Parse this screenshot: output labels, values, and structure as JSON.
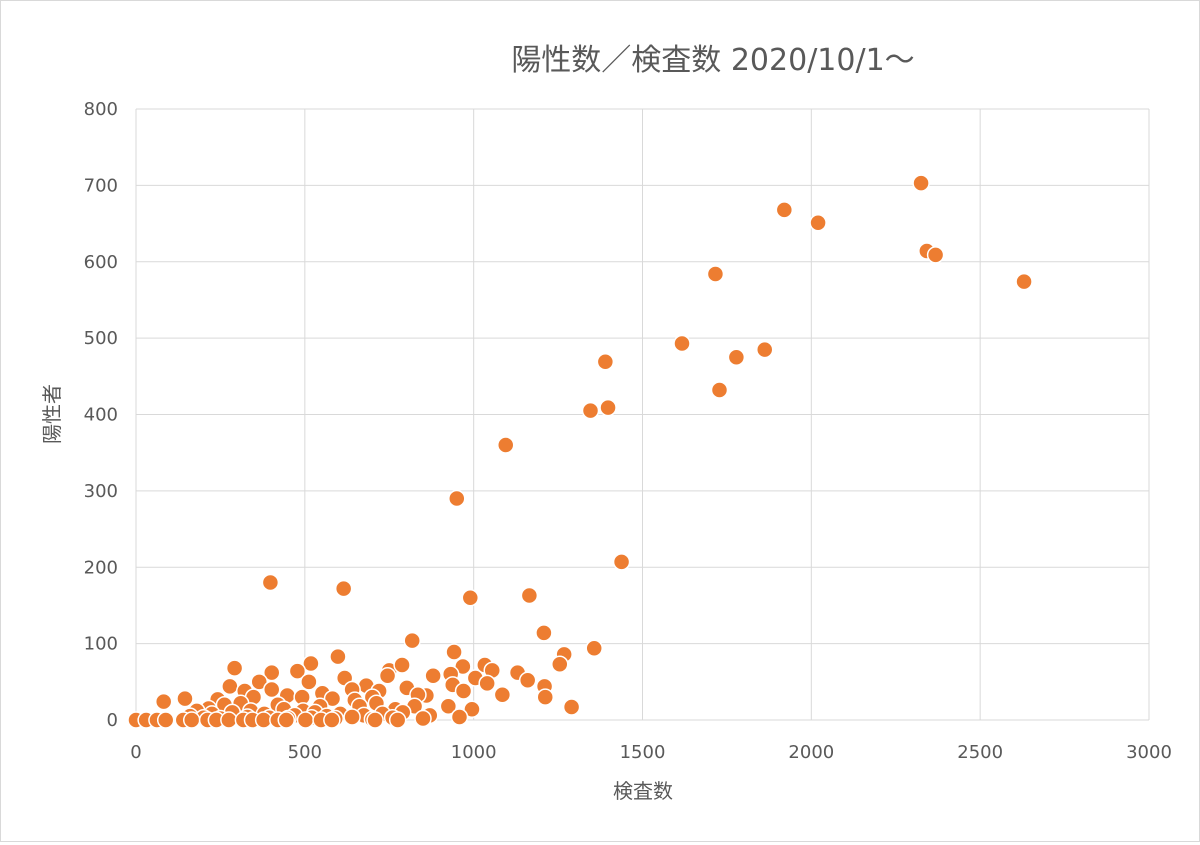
{
  "chart_data": {
    "type": "scatter",
    "title": "陽性数／検査数 2020/10/1～",
    "xlabel": "検査数",
    "ylabel": "陽性者",
    "xlim": [
      0,
      3000
    ],
    "ylim": [
      0,
      800
    ],
    "x_ticks": [
      "0",
      "500",
      "1000",
      "1500",
      "2000",
      "2500",
      "3000"
    ],
    "y_ticks": [
      "0",
      "100",
      "200",
      "300",
      "400",
      "500",
      "600",
      "700",
      "800"
    ],
    "grid": true,
    "legend": "none",
    "marker_color": "#ed7d31",
    "series": [
      {
        "points": [
          [
            2325,
            703
          ],
          [
            1920,
            668
          ],
          [
            2020,
            651
          ],
          [
            2342,
            614
          ],
          [
            2368,
            609
          ],
          [
            2630,
            574
          ],
          [
            1716,
            584
          ],
          [
            1617,
            493
          ],
          [
            1778,
            475
          ],
          [
            1862,
            485
          ],
          [
            1728,
            432
          ],
          [
            1390,
            469
          ],
          [
            1398,
            409
          ],
          [
            1346,
            405
          ],
          [
            1095,
            360
          ],
          [
            950,
            290
          ],
          [
            1438,
            207
          ],
          [
            398,
            180
          ],
          [
            615,
            172
          ],
          [
            1165,
            163
          ],
          [
            990,
            160
          ],
          [
            1208,
            114
          ],
          [
            818,
            104
          ],
          [
            1357,
            94
          ],
          [
            598,
            83
          ],
          [
            942,
            89
          ],
          [
            1268,
            86
          ],
          [
            518,
            74
          ],
          [
            292,
            68
          ],
          [
            402,
            62
          ],
          [
            478,
            64
          ],
          [
            1033,
            72
          ],
          [
            968,
            70
          ],
          [
            1055,
            65
          ],
          [
            1130,
            62
          ],
          [
            1255,
            73
          ],
          [
            750,
            65
          ],
          [
            788,
            72
          ],
          [
            618,
            55
          ],
          [
            880,
            58
          ],
          [
            932,
            60
          ],
          [
            1005,
            55
          ],
          [
            365,
            50
          ],
          [
            512,
            50
          ],
          [
            682,
            45
          ],
          [
            745,
            58
          ],
          [
            1160,
            52
          ],
          [
            1210,
            44
          ],
          [
            278,
            44
          ],
          [
            322,
            38
          ],
          [
            402,
            40
          ],
          [
            448,
            32
          ],
          [
            492,
            30
          ],
          [
            552,
            35
          ],
          [
            640,
            40
          ],
          [
            720,
            38
          ],
          [
            802,
            42
          ],
          [
            860,
            32
          ],
          [
            938,
            46
          ],
          [
            1085,
            33
          ],
          [
            1212,
            30
          ],
          [
            145,
            28
          ],
          [
            82,
            24
          ],
          [
            242,
            27
          ],
          [
            348,
            30
          ],
          [
            582,
            28
          ],
          [
            648,
            26
          ],
          [
            700,
            30
          ],
          [
            835,
            33
          ],
          [
            970,
            38
          ],
          [
            1040,
            48
          ],
          [
            215,
            15
          ],
          [
            262,
            20
          ],
          [
            310,
            22
          ],
          [
            420,
            20
          ],
          [
            495,
            12
          ],
          [
            545,
            18
          ],
          [
            662,
            18
          ],
          [
            712,
            22
          ],
          [
            768,
            14
          ],
          [
            825,
            18
          ],
          [
            925,
            18
          ],
          [
            995,
            14
          ],
          [
            1290,
            17
          ],
          [
            180,
            12
          ],
          [
            225,
            8
          ],
          [
            285,
            10
          ],
          [
            340,
            12
          ],
          [
            380,
            8
          ],
          [
            438,
            14
          ],
          [
            470,
            6
          ],
          [
            530,
            10
          ],
          [
            565,
            5
          ],
          [
            605,
            8
          ],
          [
            675,
            6
          ],
          [
            730,
            8
          ],
          [
            790,
            10
          ],
          [
            870,
            6
          ],
          [
            958,
            4
          ],
          [
            160,
            5
          ],
          [
            200,
            3
          ],
          [
            250,
            2
          ],
          [
            330,
            4
          ],
          [
            395,
            3
          ],
          [
            450,
            2
          ],
          [
            520,
            3
          ],
          [
            590,
            2
          ],
          [
            640,
            4
          ],
          [
            700,
            1
          ],
          [
            760,
            3
          ],
          [
            850,
            2
          ],
          [
            0,
            0
          ],
          [
            30,
            0
          ],
          [
            62,
            0
          ],
          [
            88,
            0
          ],
          [
            140,
            0
          ],
          [
            165,
            0
          ],
          [
            212,
            0
          ],
          [
            238,
            0
          ],
          [
            275,
            0
          ],
          [
            318,
            0
          ],
          [
            345,
            0
          ],
          [
            378,
            0
          ],
          [
            420,
            0
          ],
          [
            445,
            0
          ],
          [
            502,
            0
          ],
          [
            548,
            0
          ],
          [
            580,
            0
          ],
          [
            708,
            0
          ],
          [
            775,
            0
          ]
        ]
      }
    ]
  }
}
